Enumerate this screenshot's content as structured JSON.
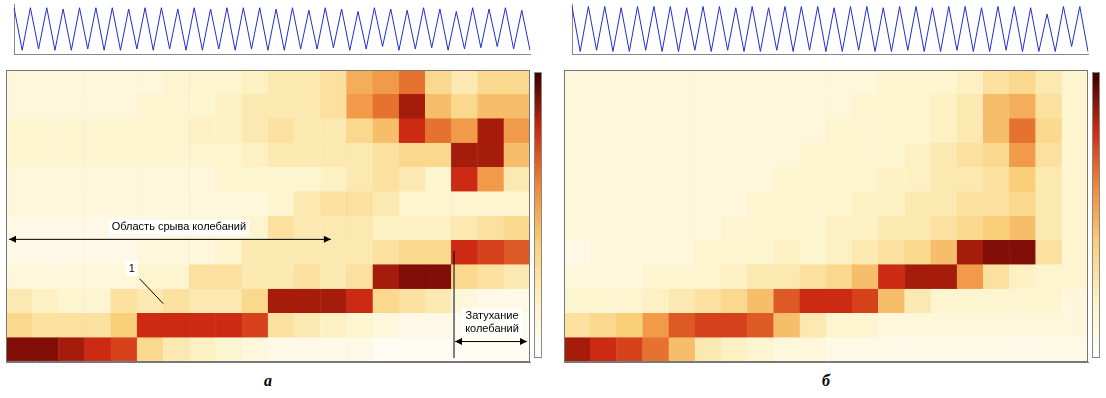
{
  "chart_data": [
    {
      "type": "line",
      "color": "#1f2fd0",
      "ylim": [
        -1,
        1
      ],
      "tick_labels": false,
      "values": [
        0.85,
        -0.85,
        0.85,
        -0.8,
        0.85,
        -0.85,
        0.8,
        -0.85,
        0.85,
        -0.8,
        0.85,
        -0.85,
        0.85,
        -0.85,
        0.8,
        -0.8,
        0.85,
        -0.85,
        0.85,
        -0.8,
        0.8,
        -0.85,
        0.85,
        -0.85,
        0.8,
        -0.8,
        0.85,
        -0.85,
        0.85,
        -0.8,
        0.85,
        -0.85,
        0.8,
        -0.85,
        0.85,
        -0.8,
        0.75,
        -0.8,
        0.85,
        -0.75,
        0.8,
        -0.85,
        0.7,
        -0.8,
        0.85,
        -0.7,
        0.8,
        -0.85,
        0.75,
        -0.8,
        0.85,
        -0.75,
        0.8,
        -0.85,
        0.7,
        -0.8,
        0.85,
        -0.75,
        0.8,
        -0.7,
        0.85,
        -0.8,
        0.75,
        -0.85
      ]
    },
    {
      "type": "heatmap",
      "panel_label": "а",
      "xlim": [
        0,
        20
      ],
      "ylim": [
        0,
        12
      ],
      "xticks": [
        0,
        2,
        4,
        6,
        8,
        10,
        12,
        14,
        16,
        18,
        20
      ],
      "yticks": [
        0,
        3,
        6,
        9,
        12
      ],
      "grid": true,
      "tick_labels": false,
      "colorbar": {
        "range": [
          0,
          1
        ]
      },
      "annotations": [
        "Область срыва колебаний",
        "1",
        "Затухание колебаний"
      ],
      "cells": [
        [
          0.95,
          0.95,
          0.9,
          0.85,
          0.8,
          0.4,
          0.3,
          0.25,
          0.2,
          0.15,
          0.1,
          0.1,
          0.1,
          0.1,
          0.05,
          0.05,
          0.05,
          0.05,
          0.05,
          0.05
        ],
        [
          0.4,
          0.35,
          0.35,
          0.35,
          0.45,
          0.85,
          0.85,
          0.85,
          0.85,
          0.8,
          0.35,
          0.3,
          0.25,
          0.2,
          0.15,
          0.1,
          0.1,
          0.05,
          0.05,
          0.05
        ],
        [
          0.3,
          0.25,
          0.2,
          0.2,
          0.35,
          0.3,
          0.35,
          0.3,
          0.3,
          0.4,
          0.9,
          0.9,
          0.9,
          0.85,
          0.4,
          0.35,
          0.3,
          0.15,
          0.1,
          0.1
        ],
        [
          0.15,
          0.15,
          0.15,
          0.15,
          0.15,
          0.2,
          0.2,
          0.35,
          0.35,
          0.3,
          0.3,
          0.35,
          0.3,
          0.35,
          0.9,
          0.95,
          0.95,
          0.4,
          0.35,
          0.3
        ],
        [
          0.1,
          0.1,
          0.1,
          0.1,
          0.1,
          0.15,
          0.15,
          0.15,
          0.2,
          0.3,
          0.3,
          0.3,
          0.3,
          0.3,
          0.35,
          0.4,
          0.4,
          0.85,
          0.8,
          0.75
        ],
        [
          0.1,
          0.1,
          0.1,
          0.1,
          0.1,
          0.1,
          0.15,
          0.15,
          0.15,
          0.2,
          0.35,
          0.3,
          0.3,
          0.3,
          0.25,
          0.25,
          0.25,
          0.3,
          0.35,
          0.4
        ],
        [
          0.15,
          0.15,
          0.15,
          0.15,
          0.15,
          0.15,
          0.15,
          0.15,
          0.15,
          0.15,
          0.2,
          0.3,
          0.35,
          0.35,
          0.3,
          0.2,
          0.2,
          0.2,
          0.2,
          0.2
        ],
        [
          0.15,
          0.15,
          0.15,
          0.15,
          0.15,
          0.15,
          0.15,
          0.15,
          0.2,
          0.2,
          0.2,
          0.2,
          0.25,
          0.3,
          0.35,
          0.3,
          0.2,
          0.85,
          0.6,
          0.3
        ],
        [
          0.2,
          0.2,
          0.2,
          0.2,
          0.2,
          0.2,
          0.2,
          0.2,
          0.2,
          0.25,
          0.3,
          0.3,
          0.3,
          0.3,
          0.35,
          0.4,
          0.4,
          0.9,
          0.9,
          0.5
        ],
        [
          0.2,
          0.2,
          0.2,
          0.2,
          0.2,
          0.2,
          0.2,
          0.25,
          0.25,
          0.3,
          0.35,
          0.3,
          0.3,
          0.4,
          0.5,
          0.85,
          0.7,
          0.6,
          0.9,
          0.6
        ],
        [
          0.15,
          0.15,
          0.15,
          0.15,
          0.15,
          0.2,
          0.2,
          0.2,
          0.25,
          0.3,
          0.3,
          0.3,
          0.35,
          0.6,
          0.7,
          0.9,
          0.5,
          0.4,
          0.5,
          0.5
        ],
        [
          0.15,
          0.15,
          0.15,
          0.15,
          0.15,
          0.15,
          0.2,
          0.2,
          0.2,
          0.25,
          0.3,
          0.3,
          0.35,
          0.55,
          0.6,
          0.7,
          0.4,
          0.3,
          0.4,
          0.4
        ]
      ]
    },
    {
      "type": "line",
      "color": "#1f2fd0",
      "ylim": [
        -1,
        1
      ],
      "tick_labels": false,
      "values": [
        0.9,
        -0.9,
        0.9,
        -0.85,
        0.9,
        -0.9,
        0.85,
        -0.9,
        0.9,
        -0.85,
        0.9,
        -0.9,
        0.9,
        -0.9,
        0.85,
        -0.85,
        0.9,
        -0.9,
        0.9,
        -0.85,
        0.85,
        -0.9,
        0.9,
        -0.9,
        0.85,
        -0.85,
        0.9,
        -0.9,
        0.9,
        -0.85,
        0.9,
        -0.9,
        0.85,
        -0.9,
        0.9,
        -0.85,
        0.9,
        -0.9,
        0.85,
        -0.9,
        0.9,
        -0.85,
        0.9,
        -0.9,
        0.85,
        -0.9,
        0.9,
        -0.85,
        0.9,
        -0.9,
        0.85,
        -0.9,
        0.9,
        -0.85,
        0.9,
        -0.9,
        0.85,
        -0.9,
        0.6,
        -0.9,
        0.9,
        -0.7,
        0.9,
        -0.9
      ]
    },
    {
      "type": "heatmap",
      "panel_label": "б",
      "xlim": [
        0,
        20
      ],
      "ylim": [
        0,
        12
      ],
      "grid": false,
      "tick_labels": false,
      "colorbar": {
        "range": [
          0,
          1
        ]
      },
      "cells": [
        [
          0.9,
          0.85,
          0.8,
          0.7,
          0.5,
          0.3,
          0.25,
          0.2,
          0.15,
          0.15,
          0.1,
          0.1,
          0.1,
          0.1,
          0.1,
          0.1,
          0.1,
          0.1,
          0.1,
          0.1
        ],
        [
          0.35,
          0.4,
          0.45,
          0.6,
          0.75,
          0.8,
          0.8,
          0.75,
          0.5,
          0.3,
          0.2,
          0.2,
          0.15,
          0.15,
          0.15,
          0.15,
          0.15,
          0.15,
          0.15,
          0.15
        ],
        [
          0.2,
          0.2,
          0.2,
          0.25,
          0.3,
          0.35,
          0.4,
          0.5,
          0.75,
          0.85,
          0.85,
          0.8,
          0.5,
          0.3,
          0.2,
          0.2,
          0.2,
          0.2,
          0.2,
          0.15
        ],
        [
          0.15,
          0.15,
          0.15,
          0.2,
          0.2,
          0.2,
          0.25,
          0.3,
          0.3,
          0.35,
          0.4,
          0.5,
          0.85,
          0.9,
          0.9,
          0.6,
          0.35,
          0.25,
          0.2,
          0.2
        ],
        [
          0.1,
          0.15,
          0.15,
          0.15,
          0.15,
          0.2,
          0.2,
          0.2,
          0.25,
          0.2,
          0.25,
          0.3,
          0.35,
          0.4,
          0.5,
          0.9,
          0.95,
          0.95,
          0.35,
          0.2
        ],
        [
          0.15,
          0.15,
          0.15,
          0.15,
          0.15,
          0.15,
          0.2,
          0.2,
          0.2,
          0.2,
          0.25,
          0.25,
          0.3,
          0.3,
          0.35,
          0.4,
          0.45,
          0.5,
          0.3,
          0.2
        ],
        [
          0.15,
          0.15,
          0.15,
          0.15,
          0.15,
          0.15,
          0.15,
          0.2,
          0.2,
          0.2,
          0.2,
          0.25,
          0.25,
          0.3,
          0.3,
          0.35,
          0.35,
          0.4,
          0.3,
          0.2
        ],
        [
          0.15,
          0.15,
          0.15,
          0.15,
          0.15,
          0.15,
          0.15,
          0.15,
          0.2,
          0.2,
          0.2,
          0.2,
          0.25,
          0.25,
          0.3,
          0.3,
          0.35,
          0.45,
          0.3,
          0.2
        ],
        [
          0.15,
          0.15,
          0.15,
          0.15,
          0.15,
          0.15,
          0.15,
          0.15,
          0.15,
          0.2,
          0.2,
          0.2,
          0.2,
          0.25,
          0.3,
          0.35,
          0.4,
          0.6,
          0.35,
          0.2
        ],
        [
          0.15,
          0.15,
          0.15,
          0.15,
          0.15,
          0.15,
          0.15,
          0.15,
          0.15,
          0.15,
          0.2,
          0.2,
          0.2,
          0.2,
          0.25,
          0.3,
          0.5,
          0.7,
          0.4,
          0.2
        ],
        [
          0.15,
          0.15,
          0.15,
          0.15,
          0.15,
          0.15,
          0.15,
          0.15,
          0.15,
          0.15,
          0.15,
          0.2,
          0.2,
          0.2,
          0.25,
          0.3,
          0.5,
          0.55,
          0.35,
          0.2
        ],
        [
          0.15,
          0.15,
          0.15,
          0.15,
          0.15,
          0.15,
          0.15,
          0.15,
          0.15,
          0.15,
          0.15,
          0.15,
          0.2,
          0.2,
          0.2,
          0.25,
          0.35,
          0.4,
          0.3,
          0.2
        ]
      ]
    }
  ]
}
